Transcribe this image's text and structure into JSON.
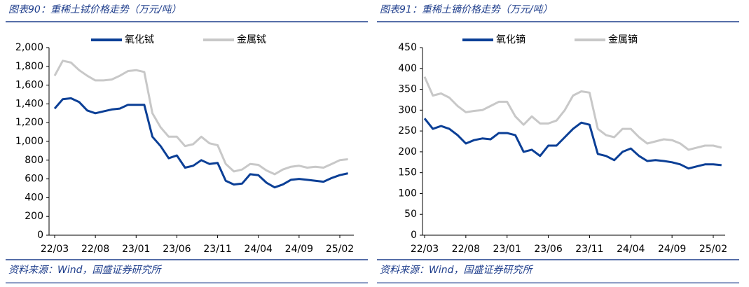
{
  "chart_data": [
    {
      "type": "line",
      "title": "图表90：重稀土铽价格走势（万元/吨）",
      "source": "资料来源：Wind，国盛证券研究所",
      "categories": [
        "22/03",
        null,
        null,
        null,
        null,
        "22/08",
        null,
        null,
        null,
        null,
        "23/01",
        null,
        null,
        null,
        null,
        "23/06",
        null,
        null,
        null,
        null,
        "23/11",
        null,
        null,
        null,
        null,
        "24/04",
        null,
        null,
        null,
        null,
        "24/09",
        null,
        null,
        null,
        null,
        "25/02",
        null
      ],
      "series": [
        {
          "name": "氧化铽",
          "color": "#0b3f96",
          "values": [
            1350,
            1450,
            1460,
            1420,
            1330,
            1300,
            1320,
            1340,
            1350,
            1390,
            1390,
            1390,
            1050,
            950,
            820,
            850,
            720,
            740,
            800,
            760,
            770,
            580,
            540,
            550,
            650,
            640,
            560,
            510,
            540,
            590,
            600,
            590,
            580,
            570,
            610,
            640,
            660
          ]
        },
        {
          "name": "金属铽",
          "color": "#c8c8c8",
          "values": [
            1700,
            1860,
            1840,
            1760,
            1700,
            1650,
            1650,
            1660,
            1700,
            1750,
            1760,
            1740,
            1300,
            1150,
            1050,
            1050,
            950,
            970,
            1050,
            980,
            960,
            760,
            680,
            700,
            760,
            750,
            690,
            650,
            700,
            730,
            740,
            720,
            730,
            720,
            760,
            800,
            810
          ]
        }
      ],
      "ylim": [
        0,
        2000
      ],
      "yticks": [
        0,
        200,
        400,
        600,
        800,
        {
          "value": 1000,
          "label": "1,000"
        },
        {
          "value": 1200,
          "label": "1,200"
        },
        {
          "value": 1400,
          "label": "1,400"
        },
        {
          "value": 1600,
          "label": "1,600"
        },
        {
          "value": 1800,
          "label": "1,800"
        },
        {
          "value": 2000,
          "label": "2,000"
        }
      ]
    },
    {
      "type": "line",
      "title": "图表91：重稀土镝价格走势（万元/吨）",
      "source": "资料来源：Wind，国盛证券研究所",
      "categories": [
        "22/03",
        null,
        null,
        null,
        null,
        "22/08",
        null,
        null,
        null,
        null,
        "23/01",
        null,
        null,
        null,
        null,
        "23/06",
        null,
        null,
        null,
        null,
        "23/11",
        null,
        null,
        null,
        null,
        "24/04",
        null,
        null,
        null,
        null,
        "24/09",
        null,
        null,
        null,
        null,
        "25/02",
        null
      ],
      "series": [
        {
          "name": "氧化镝",
          "color": "#0b3f96",
          "values": [
            280,
            255,
            262,
            255,
            240,
            220,
            228,
            232,
            230,
            245,
            245,
            240,
            200,
            205,
            190,
            215,
            215,
            235,
            255,
            270,
            265,
            195,
            190,
            180,
            200,
            208,
            190,
            178,
            180,
            178,
            175,
            170,
            160,
            165,
            170,
            170,
            168
          ]
        },
        {
          "name": "金属镝",
          "color": "#c8c8c8",
          "values": [
            380,
            335,
            340,
            330,
            310,
            295,
            298,
            300,
            310,
            320,
            320,
            285,
            265,
            285,
            268,
            268,
            275,
            300,
            335,
            345,
            342,
            255,
            240,
            235,
            255,
            255,
            235,
            220,
            225,
            230,
            228,
            220,
            205,
            210,
            215,
            215,
            210
          ]
        }
      ],
      "ylim": [
        0,
        450
      ],
      "yticks": [
        0,
        50,
        100,
        150,
        200,
        250,
        300,
        350,
        400,
        450
      ]
    }
  ]
}
